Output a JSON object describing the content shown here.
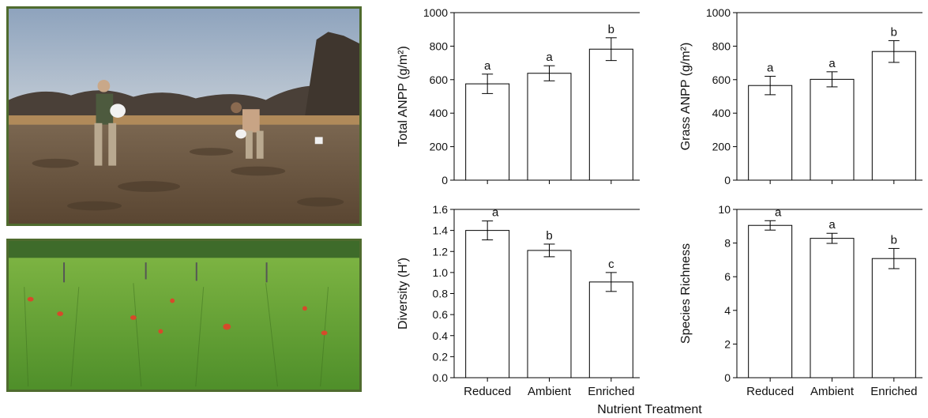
{
  "photos": [
    {
      "description_icon": "field-fertilizing-photo-icon"
    },
    {
      "description_icon": "grassland-plot-photo-icon"
    }
  ],
  "x_axis_title": "Nutrient Treatment",
  "chart_data": [
    {
      "type": "bar",
      "categories": [
        "Reduced",
        "Ambient",
        "Enriched"
      ],
      "values": [
        575,
        638,
        782
      ],
      "errors": [
        58,
        45,
        68
      ],
      "letters": [
        "a",
        "a",
        "b"
      ],
      "ylabel": "Total ANPP (g/m²)",
      "ylim": [
        0,
        1000
      ],
      "yticks": [
        0,
        200,
        400,
        600,
        800,
        1000
      ],
      "ytick_labels": [
        "0",
        "200",
        "400",
        "600",
        "800",
        "1000"
      ]
    },
    {
      "type": "bar",
      "categories": [
        "Reduced",
        "Ambient",
        "Enriched"
      ],
      "values": [
        565,
        602,
        768
      ],
      "errors": [
        55,
        45,
        65
      ],
      "letters": [
        "a",
        "a",
        "b"
      ],
      "ylabel": "Grass ANPP (g/m²)",
      "ylim": [
        0,
        1000
      ],
      "yticks": [
        0,
        200,
        400,
        600,
        800,
        1000
      ],
      "ytick_labels": [
        "0",
        "200",
        "400",
        "600",
        "800",
        "1000"
      ]
    },
    {
      "type": "bar",
      "categories": [
        "Reduced",
        "Ambient",
        "Enriched"
      ],
      "values": [
        1.4,
        1.21,
        0.91
      ],
      "errors": [
        0.09,
        0.06,
        0.09
      ],
      "letters": [
        "a",
        "b",
        "c"
      ],
      "ylabel": "Diversity (H′)",
      "ylim": [
        0,
        1.6
      ],
      "yticks": [
        0,
        0.2,
        0.4,
        0.6,
        0.8,
        1.0,
        1.2,
        1.4,
        1.6
      ],
      "ytick_labels": [
        "0.0",
        "0.2",
        "0.4",
        "0.6",
        "0.8",
        "1.0",
        "1.2",
        "1.4",
        "1.6"
      ]
    },
    {
      "type": "bar",
      "categories": [
        "Reduced",
        "Ambient",
        "Enriched"
      ],
      "values": [
        9.05,
        8.28,
        7.08
      ],
      "errors": [
        0.28,
        0.3,
        0.6
      ],
      "letters": [
        "a",
        "a",
        "b"
      ],
      "ylabel": "Species Richness",
      "ylim": [
        0,
        10
      ],
      "yticks": [
        0,
        2,
        4,
        6,
        8,
        10
      ],
      "ytick_labels": [
        "0",
        "2",
        "4",
        "6",
        "8",
        "10"
      ]
    }
  ]
}
